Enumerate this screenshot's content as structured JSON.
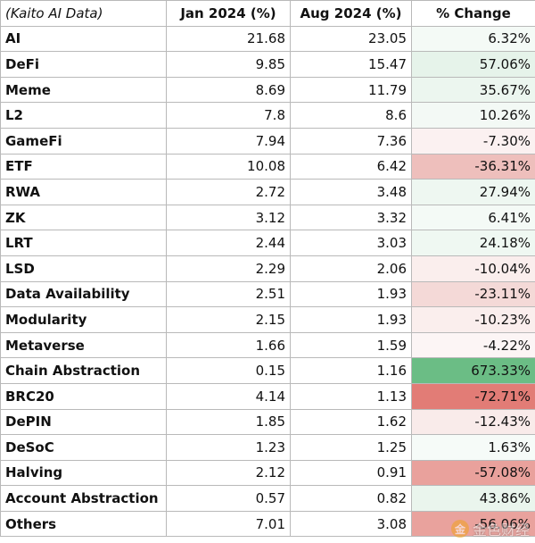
{
  "table": {
    "headers": [
      "(Kaito AI Data)",
      "Jan 2024 (%)",
      "Aug 2024 (%)",
      "% Change"
    ],
    "rows": [
      {
        "name": "AI",
        "jan": "21.68",
        "aug": "23.05",
        "change": "6.32%",
        "bg": "#f4faf6"
      },
      {
        "name": "DeFi",
        "jan": "9.85",
        "aug": "15.47",
        "change": "57.06%",
        "bg": "#e6f3ea"
      },
      {
        "name": "Meme",
        "jan": "8.69",
        "aug": "11.79",
        "change": "35.67%",
        "bg": "#ecf6ef"
      },
      {
        "name": "L2",
        "jan": "7.8",
        "aug": "8.6",
        "change": "10.26%",
        "bg": "#f3f9f5"
      },
      {
        "name": "GameFi",
        "jan": "7.94",
        "aug": "7.36",
        "change": "-7.30%",
        "bg": "#fbf1f1"
      },
      {
        "name": "ETF",
        "jan": "10.08",
        "aug": "6.42",
        "change": "-36.31%",
        "bg": "#eebfbc"
      },
      {
        "name": "RWA",
        "jan": "2.72",
        "aug": "3.48",
        "change": "27.94%",
        "bg": "#eef7f1"
      },
      {
        "name": "ZK",
        "jan": "3.12",
        "aug": "3.32",
        "change": "6.41%",
        "bg": "#f4faf6"
      },
      {
        "name": "LRT",
        "jan": "2.44",
        "aug": "3.03",
        "change": "24.18%",
        "bg": "#eff8f2"
      },
      {
        "name": "LSD",
        "jan": "2.29",
        "aug": "2.06",
        "change": "-10.04%",
        "bg": "#faeeed"
      },
      {
        "name": "Data Availability",
        "jan": "2.51",
        "aug": "1.93",
        "change": "-23.11%",
        "bg": "#f4d9d7"
      },
      {
        "name": "Modularity",
        "jan": "2.15",
        "aug": "1.93",
        "change": "-10.23%",
        "bg": "#faeeed"
      },
      {
        "name": "Metaverse",
        "jan": "1.66",
        "aug": "1.59",
        "change": "-4.22%",
        "bg": "#fcf5f5"
      },
      {
        "name": "Chain Abstraction",
        "jan": "0.15",
        "aug": "1.16",
        "change": "673.33%",
        "bg": "#6bbd85"
      },
      {
        "name": "BRC20",
        "jan": "4.14",
        "aug": "1.13",
        "change": "-72.71%",
        "bg": "#e27c76"
      },
      {
        "name": "DePIN",
        "jan": "1.85",
        "aug": "1.62",
        "change": "-12.43%",
        "bg": "#f9ebea"
      },
      {
        "name": "DeSoC",
        "jan": "1.23",
        "aug": "1.25",
        "change": "1.63%",
        "bg": "#f6fbf8"
      },
      {
        "name": "Halving",
        "jan": "2.12",
        "aug": "0.91",
        "change": "-57.08%",
        "bg": "#e9a19c"
      },
      {
        "name": "Account Abstraction",
        "jan": "0.57",
        "aug": "0.82",
        "change": "43.86%",
        "bg": "#eaf5ed"
      },
      {
        "name": "Others",
        "jan": "7.01",
        "aug": "3.08",
        "change": "-56.06%",
        "bg": "#e9a29d"
      }
    ]
  },
  "watermark": {
    "text": "金色财经",
    "logo_glyph": "金"
  }
}
